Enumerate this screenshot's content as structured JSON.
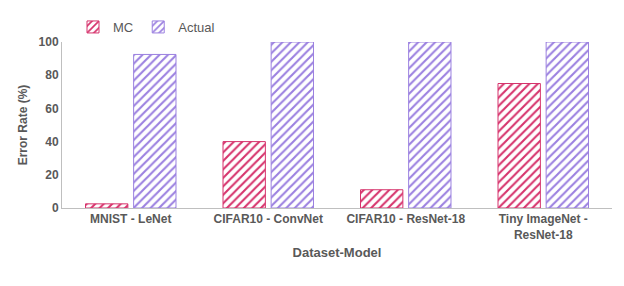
{
  "chart_data": {
    "type": "bar",
    "x_label": "Dataset-Model",
    "y_label": "Error Rate (%)",
    "categories": [
      "MNIST - LeNet",
      "CIFAR10 - ConvNet",
      "CIFAR10 - ResNet-18",
      "Tiny ImageNet - ResNet-18"
    ],
    "series": [
      {
        "name": "MC",
        "color": "#d6336c",
        "values": [
          2.5,
          40,
          11,
          75
        ]
      },
      {
        "name": "Actual",
        "color": "#9b80e0",
        "values": [
          92.5,
          100,
          100,
          100
        ]
      }
    ],
    "ylim": [
      0,
      100
    ],
    "yticks": [
      0,
      20,
      40,
      60,
      80,
      100
    ],
    "grid": false,
    "legend": "top left"
  }
}
